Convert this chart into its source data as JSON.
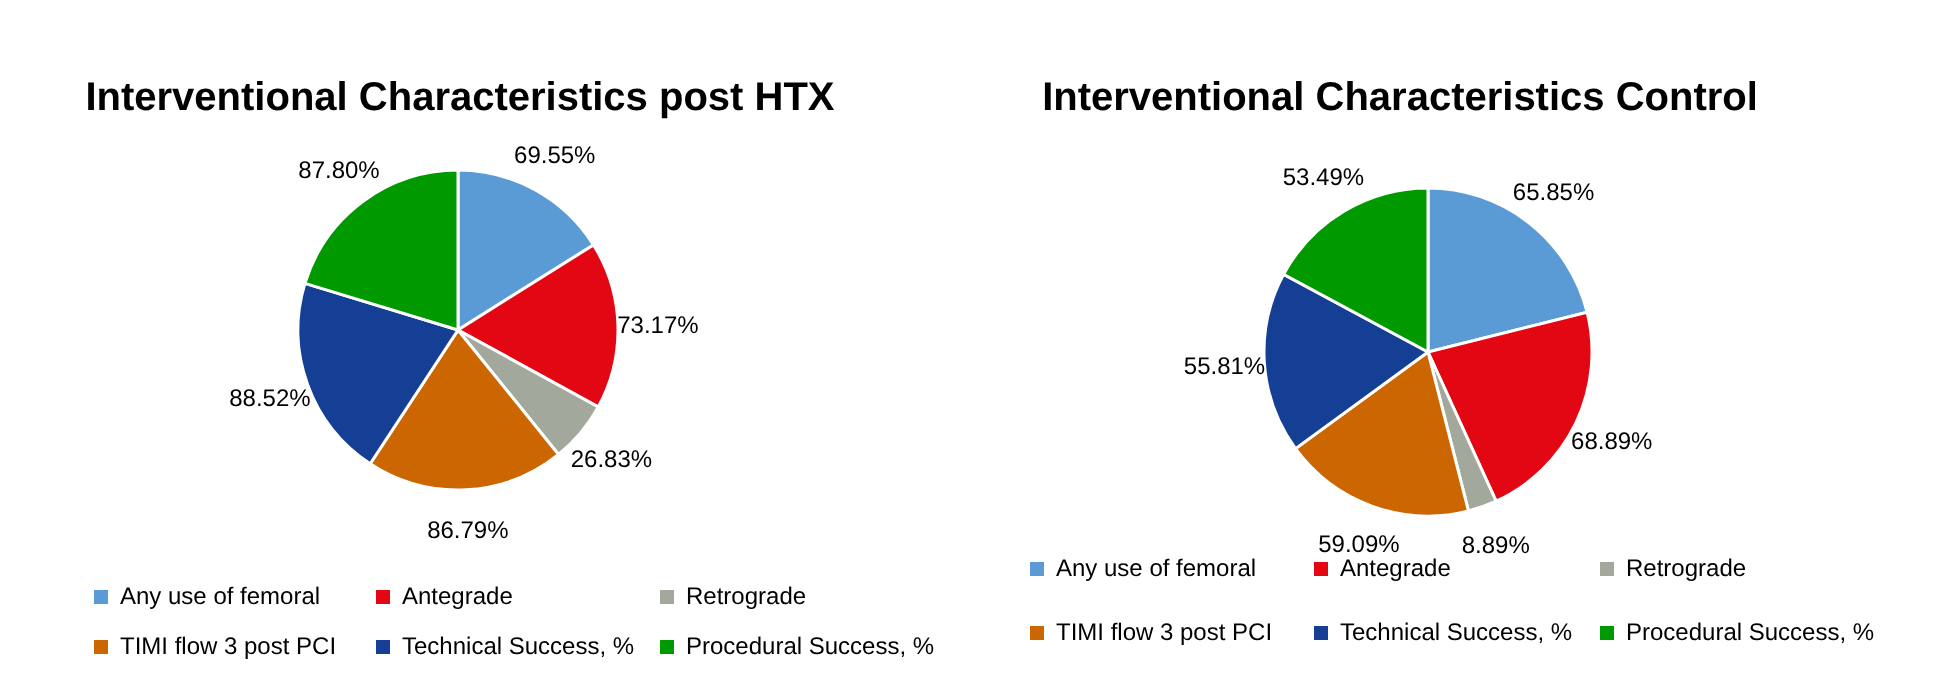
{
  "chart_data": [
    {
      "type": "pie",
      "title": "Interventional Characteristics post HTX",
      "categories": [
        "Any use of femoral",
        "Antegrade",
        "Retrograde",
        "TIMI flow 3 post PCI",
        "Technical Success, %",
        "Procedural Success, %"
      ],
      "values": [
        69.55,
        73.17,
        26.83,
        86.79,
        88.52,
        87.8
      ],
      "value_labels": [
        "69.55%",
        "73.17%",
        "26.83%",
        "86.79%",
        "88.52%",
        "87.80%"
      ],
      "colors": [
        "#5b9bd5",
        "#e30613",
        "#a3a89c",
        "#cc6600",
        "#153f94",
        "#009900"
      ],
      "legend": "bottom"
    },
    {
      "type": "pie",
      "title": "Interventional Characteristics Control",
      "categories": [
        "Any use of femoral",
        "Antegrade",
        "Retrograde",
        "TIMI flow 3 post PCI",
        "Technical Success, %",
        "Procedural Success, %"
      ],
      "values": [
        65.85,
        68.89,
        8.89,
        59.09,
        55.81,
        53.49
      ],
      "value_labels": [
        "65.85%",
        "68.89%",
        "8.89%",
        "59.09%",
        "55.81%",
        "53.49%"
      ],
      "colors": [
        "#5b9bd5",
        "#e30613",
        "#a3a89c",
        "#cc6600",
        "#153f94",
        "#009900"
      ],
      "legend": "bottom"
    }
  ]
}
